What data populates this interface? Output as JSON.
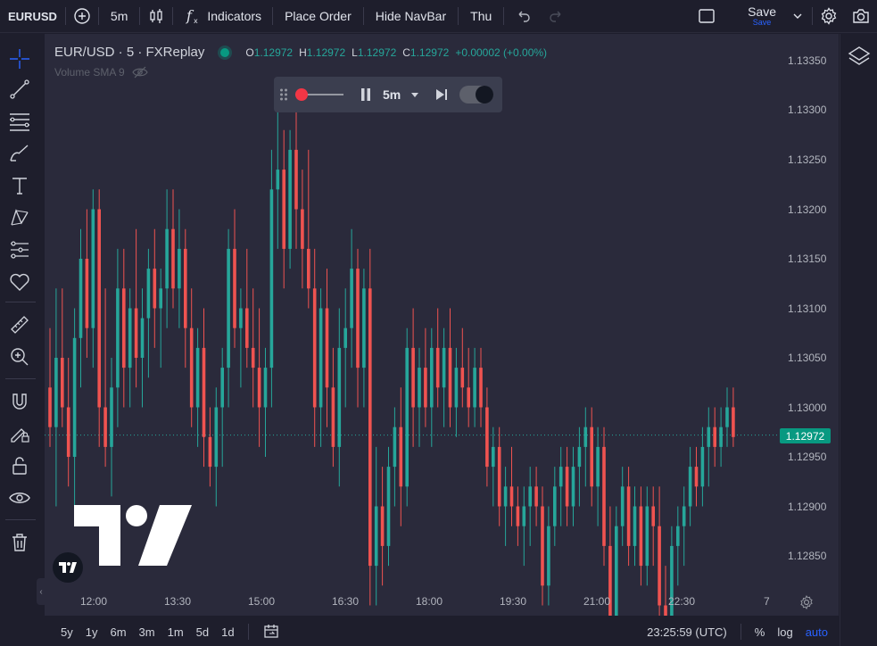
{
  "toolbar": {
    "symbol": "EURUSD",
    "interval": "5m",
    "indicators_label": "Indicators",
    "place_order_label": "Place Order",
    "hide_navbar_label": "Hide NavBar",
    "day_label": "Thu",
    "save_label": "Save",
    "save_sub_label": "Save"
  },
  "legend": {
    "title": "EUR/USD · 5 · FXReplay",
    "o_key": "O",
    "o_val": "1.12972",
    "h_key": "H",
    "h_val": "1.12972",
    "l_key": "L",
    "l_val": "1.12972",
    "c_key": "C",
    "c_val": "1.12972",
    "change": "+0.00002 (+0.00%)",
    "volume_label": "Volume SMA 9"
  },
  "replay": {
    "interval": "5m"
  },
  "price_axis": [
    "1.13350",
    "1.13300",
    "1.13250",
    "1.13200",
    "1.13150",
    "1.13100",
    "1.13050",
    "1.13000",
    "1.12950",
    "1.12900",
    "1.12850"
  ],
  "current_price": "1.12972",
  "time_axis": [
    "12:00",
    "13:30",
    "15:00",
    "16:30",
    "18:00",
    "19:30",
    "21:00",
    "22:30"
  ],
  "time_axis_extra": "7",
  "bottom": {
    "ranges": [
      "5y",
      "1y",
      "6m",
      "3m",
      "1m",
      "5d",
      "1d"
    ],
    "clock": "23:25:59 (UTC)",
    "percent_label": "%",
    "log_label": "log",
    "auto_label": "auto"
  },
  "colors": {
    "up": "#26a69a",
    "down": "#ef5350",
    "accent": "#2962ff"
  },
  "chart_data": {
    "type": "candlestick",
    "y_range": [
      1.1282,
      1.1338
    ],
    "candles": [
      [
        1.1302,
        1.1308,
        1.1296,
        1.1298
      ],
      [
        1.1298,
        1.1312,
        1.129,
        1.1305
      ],
      [
        1.1305,
        1.1312,
        1.1298,
        1.13
      ],
      [
        1.13,
        1.1305,
        1.1292,
        1.1295
      ],
      [
        1.1295,
        1.131,
        1.129,
        1.1307
      ],
      [
        1.1307,
        1.1318,
        1.1302,
        1.1315
      ],
      [
        1.1315,
        1.132,
        1.1305,
        1.1308
      ],
      [
        1.1308,
        1.1322,
        1.1304,
        1.132
      ],
      [
        1.132,
        1.1322,
        1.1296,
        1.13
      ],
      [
        1.13,
        1.1312,
        1.1294,
        1.1296
      ],
      [
        1.1296,
        1.1305,
        1.1291,
        1.1302
      ],
      [
        1.1302,
        1.1316,
        1.1298,
        1.1312
      ],
      [
        1.1312,
        1.1316,
        1.13,
        1.1304
      ],
      [
        1.1304,
        1.1312,
        1.13,
        1.131
      ],
      [
        1.131,
        1.1318,
        1.1302,
        1.1305
      ],
      [
        1.1305,
        1.1312,
        1.13,
        1.1309
      ],
      [
        1.1309,
        1.1316,
        1.1303,
        1.1314
      ],
      [
        1.1314,
        1.1318,
        1.1306,
        1.131
      ],
      [
        1.131,
        1.1314,
        1.1304,
        1.1312
      ],
      [
        1.1312,
        1.1322,
        1.1308,
        1.1318
      ],
      [
        1.1318,
        1.1322,
        1.131,
        1.1312
      ],
      [
        1.1312,
        1.132,
        1.1308,
        1.1316
      ],
      [
        1.1316,
        1.1318,
        1.1304,
        1.1308
      ],
      [
        1.1308,
        1.1312,
        1.1298,
        1.13
      ],
      [
        1.13,
        1.1308,
        1.1296,
        1.1306
      ],
      [
        1.1306,
        1.131,
        1.1294,
        1.1297
      ],
      [
        1.1297,
        1.13,
        1.1292,
        1.1294
      ],
      [
        1.1294,
        1.1302,
        1.129,
        1.13
      ],
      [
        1.13,
        1.1306,
        1.1294,
        1.1304
      ],
      [
        1.1304,
        1.1318,
        1.13,
        1.1316
      ],
      [
        1.1316,
        1.132,
        1.1306,
        1.1308
      ],
      [
        1.1308,
        1.1312,
        1.1302,
        1.131
      ],
      [
        1.131,
        1.1316,
        1.1304,
        1.1306
      ],
      [
        1.1306,
        1.1312,
        1.13,
        1.1304
      ],
      [
        1.1304,
        1.131,
        1.1296,
        1.13
      ],
      [
        1.13,
        1.1306,
        1.1295,
        1.1304
      ],
      [
        1.1304,
        1.1326,
        1.13,
        1.1322
      ],
      [
        1.1322,
        1.1332,
        1.1316,
        1.1324
      ],
      [
        1.1324,
        1.1328,
        1.1312,
        1.1316
      ],
      [
        1.1316,
        1.1328,
        1.1314,
        1.1326
      ],
      [
        1.1326,
        1.1332,
        1.1316,
        1.132
      ],
      [
        1.132,
        1.1324,
        1.1312,
        1.1316
      ],
      [
        1.1316,
        1.1326,
        1.131,
        1.1312
      ],
      [
        1.1312,
        1.1316,
        1.1296,
        1.13
      ],
      [
        1.13,
        1.1312,
        1.1296,
        1.131
      ],
      [
        1.131,
        1.1314,
        1.1298,
        1.1302
      ],
      [
        1.1302,
        1.1306,
        1.1294,
        1.1296
      ],
      [
        1.1296,
        1.131,
        1.1292,
        1.1306
      ],
      [
        1.1306,
        1.1312,
        1.13,
        1.1308
      ],
      [
        1.1308,
        1.1318,
        1.1304,
        1.1314
      ],
      [
        1.1314,
        1.1316,
        1.13,
        1.1304
      ],
      [
        1.1304,
        1.1314,
        1.13,
        1.1312
      ],
      [
        1.1312,
        1.1316,
        1.128,
        1.1284
      ],
      [
        1.1284,
        1.1296,
        1.128,
        1.129
      ],
      [
        1.129,
        1.1294,
        1.1282,
        1.1286
      ],
      [
        1.1286,
        1.1296,
        1.1284,
        1.1294
      ],
      [
        1.1294,
        1.13,
        1.129,
        1.1298
      ],
      [
        1.1298,
        1.1302,
        1.1288,
        1.1292
      ],
      [
        1.1292,
        1.1308,
        1.129,
        1.1306
      ],
      [
        1.1306,
        1.131,
        1.1296,
        1.13
      ],
      [
        1.13,
        1.1306,
        1.1296,
        1.1304
      ],
      [
        1.1304,
        1.1308,
        1.1298,
        1.13
      ],
      [
        1.13,
        1.1308,
        1.1296,
        1.1306
      ],
      [
        1.1306,
        1.131,
        1.13,
        1.1302
      ],
      [
        1.1302,
        1.1308,
        1.1298,
        1.1306
      ],
      [
        1.1306,
        1.131,
        1.1298,
        1.13
      ],
      [
        1.13,
        1.1306,
        1.1297,
        1.1304
      ],
      [
        1.1304,
        1.1308,
        1.13,
        1.1302
      ],
      [
        1.1302,
        1.1306,
        1.1298,
        1.13
      ],
      [
        1.13,
        1.1306,
        1.1298,
        1.1304
      ],
      [
        1.1304,
        1.1306,
        1.1298,
        1.13
      ],
      [
        1.13,
        1.1302,
        1.1292,
        1.1294
      ],
      [
        1.1294,
        1.1298,
        1.129,
        1.1296
      ],
      [
        1.1296,
        1.1298,
        1.1288,
        1.129
      ],
      [
        1.129,
        1.1294,
        1.1286,
        1.1292
      ],
      [
        1.1292,
        1.1296,
        1.1288,
        1.129
      ],
      [
        1.129,
        1.1292,
        1.1286,
        1.1288
      ],
      [
        1.1288,
        1.1292,
        1.1284,
        1.129
      ],
      [
        1.129,
        1.1294,
        1.1286,
        1.1292
      ],
      [
        1.1292,
        1.1294,
        1.1288,
        1.129
      ],
      [
        1.129,
        1.1292,
        1.128,
        1.1282
      ],
      [
        1.1282,
        1.129,
        1.128,
        1.1288
      ],
      [
        1.1288,
        1.1294,
        1.1286,
        1.1292
      ],
      [
        1.1292,
        1.1296,
        1.1288,
        1.1294
      ],
      [
        1.1294,
        1.1296,
        1.1288,
        1.129
      ],
      [
        1.129,
        1.1296,
        1.1288,
        1.1294
      ],
      [
        1.1294,
        1.1298,
        1.129,
        1.1296
      ],
      [
        1.1296,
        1.13,
        1.1292,
        1.1298
      ],
      [
        1.1298,
        1.13,
        1.129,
        1.1292
      ],
      [
        1.1292,
        1.1298,
        1.1288,
        1.1296
      ],
      [
        1.1296,
        1.1298,
        1.1284,
        1.1286
      ],
      [
        1.1286,
        1.129,
        1.1276,
        1.1278
      ],
      [
        1.1278,
        1.129,
        1.1276,
        1.1288
      ],
      [
        1.1288,
        1.1294,
        1.1286,
        1.1292
      ],
      [
        1.1292,
        1.1294,
        1.1284,
        1.1286
      ],
      [
        1.1286,
        1.1292,
        1.1284,
        1.129
      ],
      [
        1.129,
        1.1292,
        1.1282,
        1.1284
      ],
      [
        1.1284,
        1.1292,
        1.1282,
        1.129
      ],
      [
        1.129,
        1.1292,
        1.1284,
        1.1288
      ],
      [
        1.1288,
        1.1292,
        1.1278,
        1.128
      ],
      [
        1.128,
        1.1284,
        1.1276,
        1.1278
      ],
      [
        1.1278,
        1.1288,
        1.1276,
        1.1286
      ],
      [
        1.1286,
        1.129,
        1.1282,
        1.1288
      ],
      [
        1.1288,
        1.1292,
        1.1284,
        1.129
      ],
      [
        1.129,
        1.1296,
        1.1288,
        1.1294
      ],
      [
        1.1294,
        1.1296,
        1.129,
        1.1292
      ],
      [
        1.1292,
        1.1298,
        1.129,
        1.1296
      ],
      [
        1.1296,
        1.13,
        1.1292,
        1.1298
      ],
      [
        1.1298,
        1.13,
        1.1294,
        1.1296
      ],
      [
        1.1296,
        1.13,
        1.1294,
        1.1298
      ],
      [
        1.1298,
        1.1302,
        1.1296,
        1.13
      ],
      [
        1.13,
        1.1302,
        1.1296,
        1.1297
      ]
    ]
  }
}
